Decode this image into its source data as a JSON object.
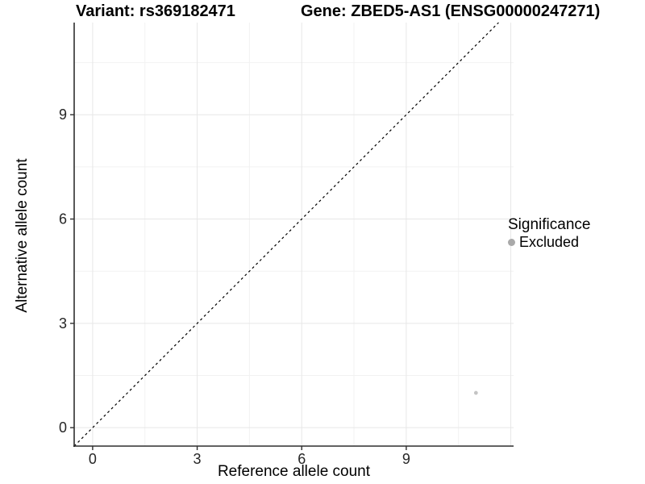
{
  "chart_data": {
    "type": "scatter",
    "title_left": "Variant: rs369182471",
    "title_right": "Gene: ZBED5-AS1 (ENSG00000247271)",
    "xlabel": "Reference allele count",
    "ylabel": "Alternative allele count",
    "xlim": [
      -0.53,
      12.08
    ],
    "ylim": [
      -0.53,
      11.65
    ],
    "xticks": [
      0,
      3,
      6,
      9
    ],
    "yticks": [
      0,
      3,
      6,
      9
    ],
    "minor_xticks": [
      1.5,
      4.5,
      7.5,
      10.5
    ],
    "minor_yticks": [
      1.5,
      4.5,
      7.5,
      10.5
    ],
    "grid": "major+minor, light gray on white",
    "identity_line": {
      "type": "y=x",
      "style": "dashed",
      "color": "#000000"
    },
    "series": [
      {
        "name": "Excluded",
        "points": [
          {
            "x": 11,
            "y": 1
          }
        ],
        "color": "#c4c4c4"
      }
    ],
    "legend": {
      "position": "right",
      "title": "Significance",
      "items": [
        {
          "label": "Excluded",
          "color": "#a9a9a9"
        }
      ]
    }
  },
  "colors": {
    "background": "#ffffff",
    "axis_line": "#2e2e2e",
    "tick_label": "#262626",
    "grid_major": "#e7e7e7",
    "grid_minor": "#f2f2f2",
    "point": "#c4c4c4",
    "legend_dot": "#a9a9a9"
  }
}
